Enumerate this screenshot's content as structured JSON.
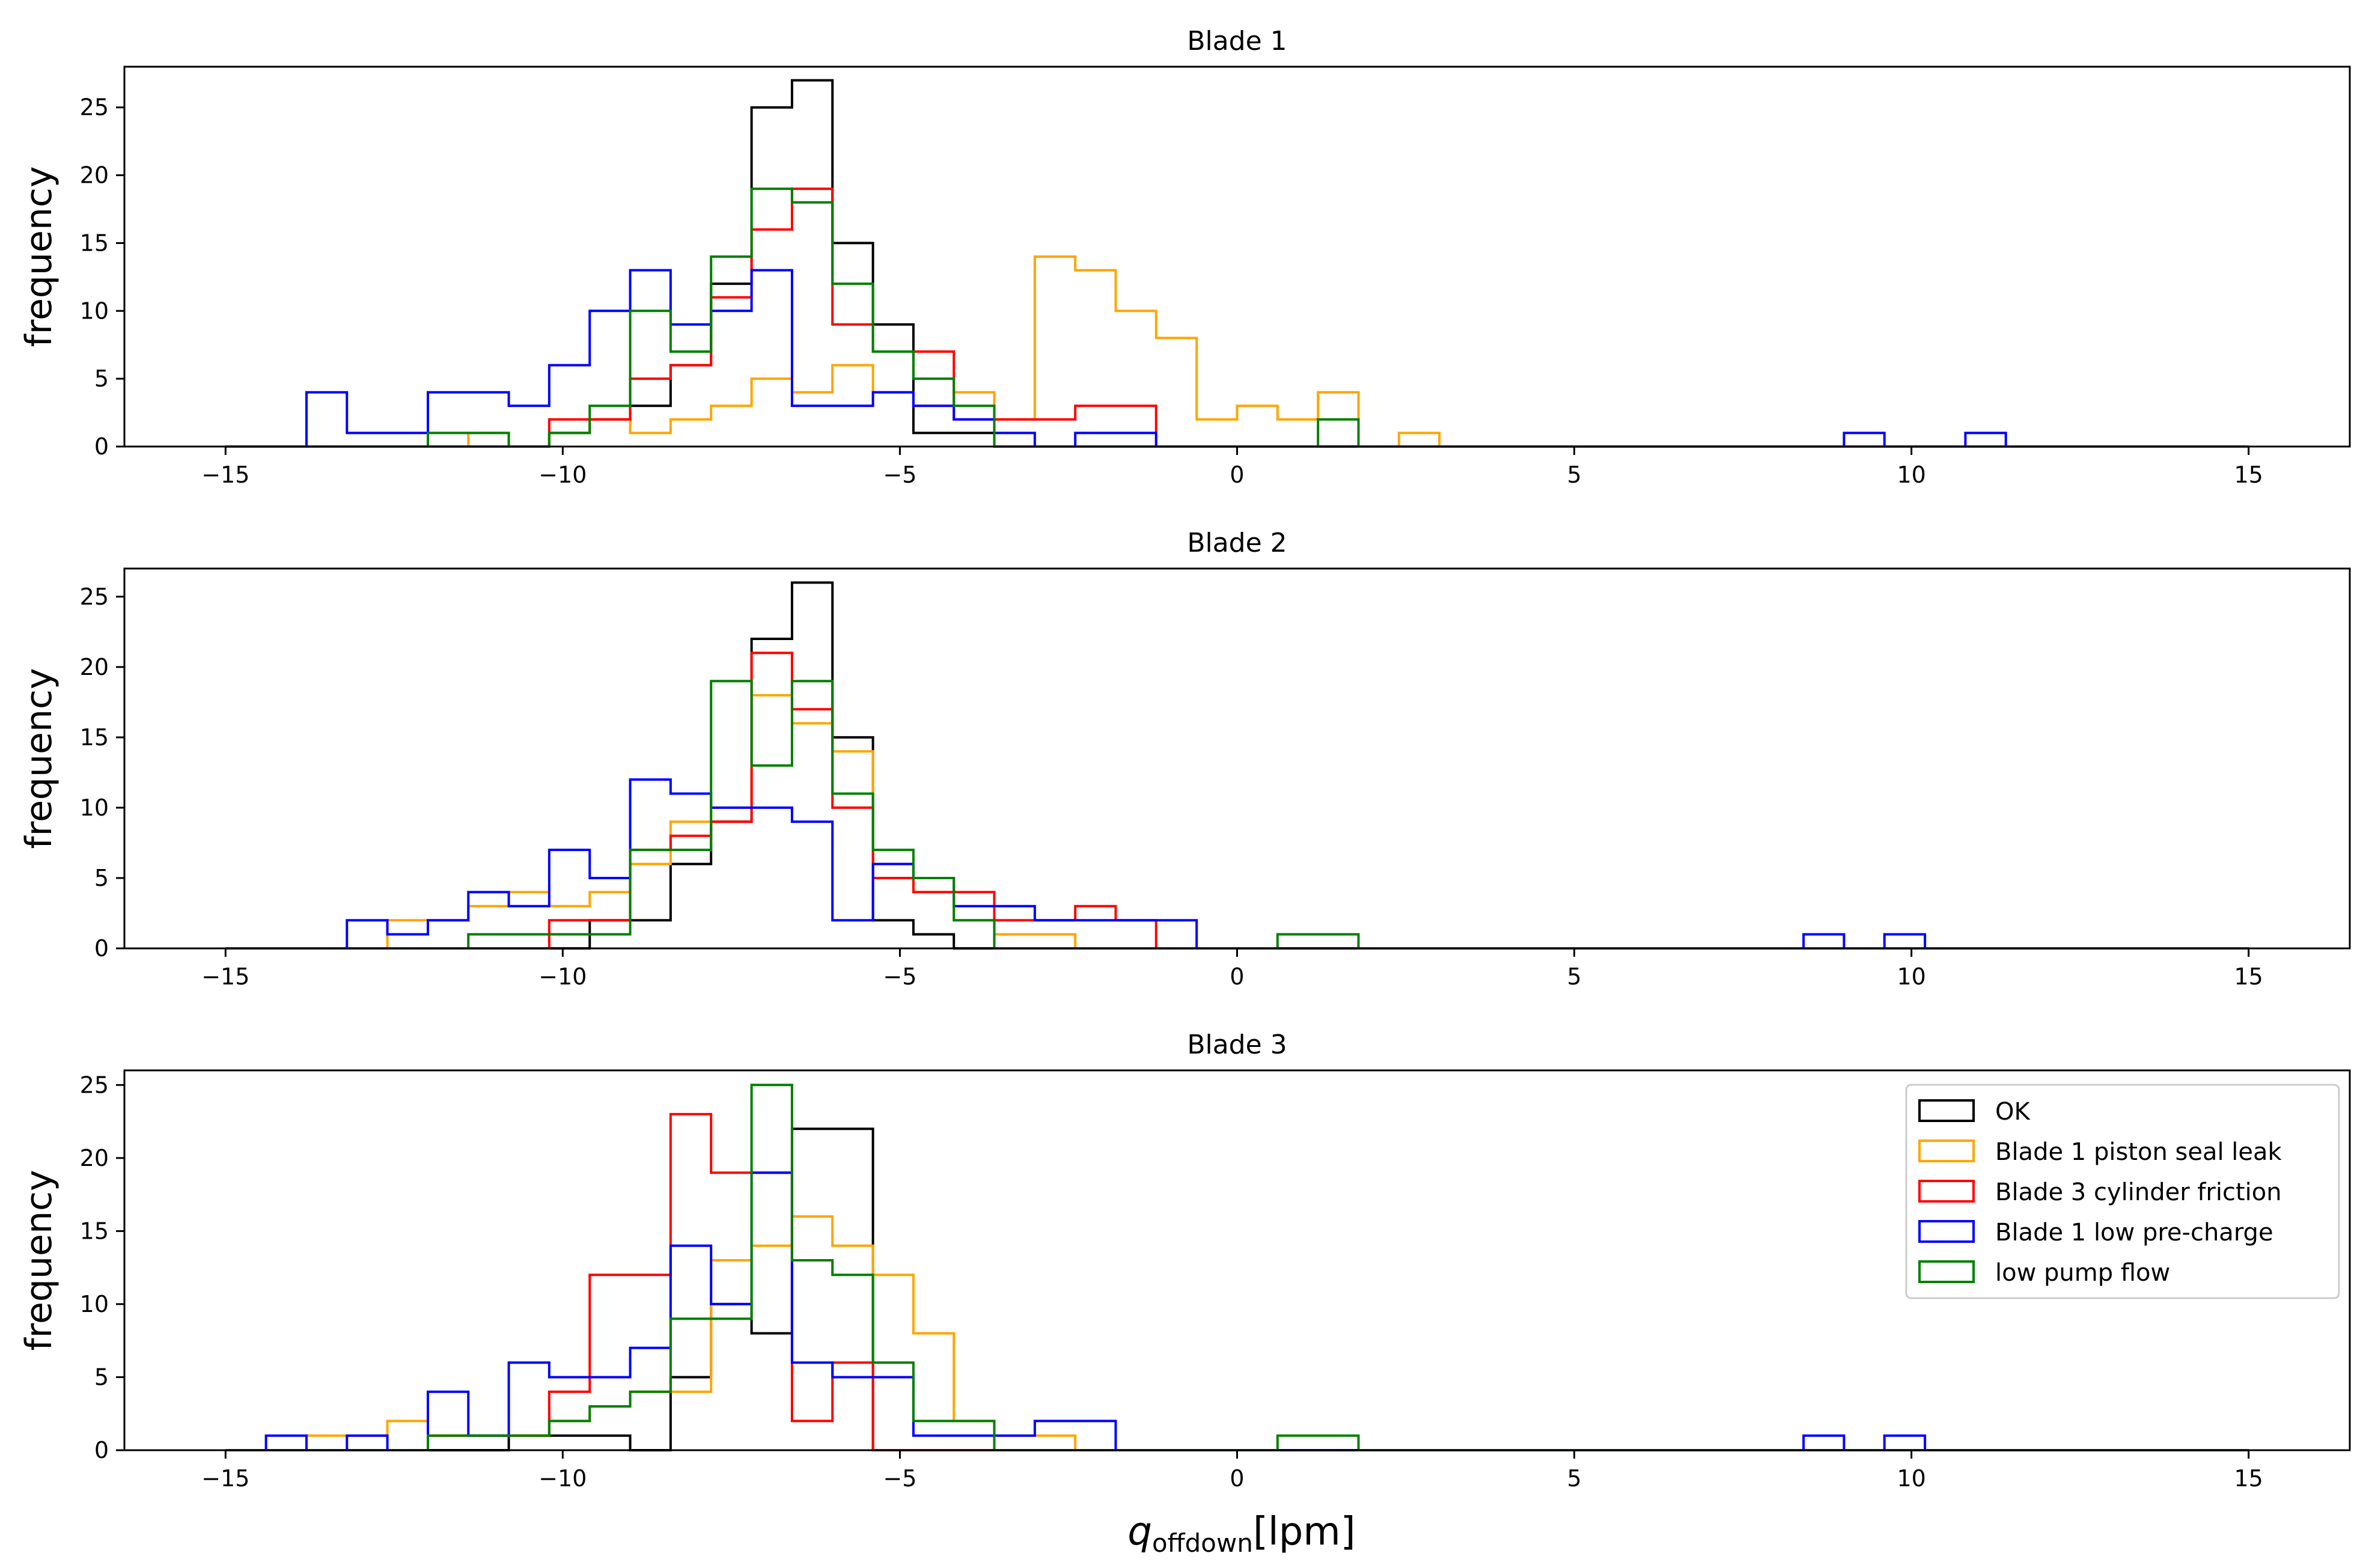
{
  "figure": {
    "xlabel_main": "q",
    "xlabel_sub": "offdown",
    "xlabel_unit": "[lpm]",
    "series_styles": [
      {
        "name": "OK",
        "color": "#000000"
      },
      {
        "name": "Blade 1 piston seal leak",
        "color": "#FFA500"
      },
      {
        "name": "Blade 3 cylinder friction",
        "color": "#FF0000"
      },
      {
        "name": "Blade 1 low pre-charge",
        "color": "#0000FF"
      },
      {
        "name": "low pump flow",
        "color": "#008000"
      }
    ]
  },
  "chart_data": [
    {
      "type": "histogram",
      "title": "Blade 1",
      "xlabel": "",
      "ylabel": "frequency",
      "xlim": [
        -16.5,
        16.5
      ],
      "ylim": [
        0,
        28
      ],
      "xticks": [
        -15,
        -10,
        -5,
        0,
        5,
        10,
        15
      ],
      "xtick_labels": [
        "−15",
        "−10",
        "−5",
        "0",
        "5",
        "10",
        "15"
      ],
      "yticks": [
        0,
        5,
        10,
        15,
        20,
        25
      ],
      "bin_start": -15,
      "bin_width": 0.6,
      "series": [
        {
          "name": "OK",
          "bins": [
            [
              -10.2,
              1
            ],
            [
              -9.6,
              2
            ],
            [
              -9.0,
              3
            ],
            [
              -8.4,
              6
            ],
            [
              -7.8,
              12
            ],
            [
              -7.2,
              25
            ],
            [
              -6.6,
              27
            ],
            [
              -6.0,
              15
            ],
            [
              -5.4,
              9
            ],
            [
              -4.8,
              1
            ],
            [
              -4.2,
              1
            ]
          ]
        },
        {
          "name": "Blade 1 piston seal leak",
          "bins": [
            [
              -11.4,
              1
            ],
            [
              -10.2,
              1
            ],
            [
              -9.6,
              2
            ],
            [
              -9.0,
              1
            ],
            [
              -8.4,
              2
            ],
            [
              -7.8,
              3
            ],
            [
              -7.2,
              5
            ],
            [
              -6.6,
              4
            ],
            [
              -6.0,
              6
            ],
            [
              -5.4,
              4
            ],
            [
              -4.8,
              3
            ],
            [
              -4.2,
              4
            ],
            [
              -3.6,
              2
            ],
            [
              -3.0,
              14
            ],
            [
              -2.4,
              13
            ],
            [
              -1.8,
              10
            ],
            [
              -1.2,
              8
            ],
            [
              -0.6,
              2
            ],
            [
              0.0,
              3
            ],
            [
              0.6,
              2
            ],
            [
              1.2,
              4
            ],
            [
              2.4,
              1
            ]
          ]
        },
        {
          "name": "Blade 3 cylinder friction",
          "bins": [
            [
              -10.2,
              2
            ],
            [
              -9.6,
              2
            ],
            [
              -9.0,
              5
            ],
            [
              -8.4,
              6
            ],
            [
              -7.8,
              11
            ],
            [
              -7.2,
              16
            ],
            [
              -6.6,
              19
            ],
            [
              -6.0,
              9
            ],
            [
              -5.4,
              7
            ],
            [
              -4.8,
              7
            ],
            [
              -4.2,
              2
            ],
            [
              -3.6,
              2
            ],
            [
              -3.0,
              2
            ],
            [
              -2.4,
              3
            ],
            [
              -1.8,
              3
            ]
          ]
        },
        {
          "name": "Blade 1 low pre-charge",
          "bins": [
            [
              -13.8,
              4
            ],
            [
              -13.2,
              1
            ],
            [
              -12.6,
              1
            ],
            [
              -12.0,
              4
            ],
            [
              -11.4,
              4
            ],
            [
              -10.8,
              3
            ],
            [
              -10.2,
              6
            ],
            [
              -9.6,
              10
            ],
            [
              -9.0,
              13
            ],
            [
              -8.4,
              9
            ],
            [
              -7.8,
              10
            ],
            [
              -7.2,
              13
            ],
            [
              -6.6,
              3
            ],
            [
              -6.0,
              3
            ],
            [
              -5.4,
              4
            ],
            [
              -4.8,
              3
            ],
            [
              -4.2,
              2
            ],
            [
              -3.6,
              1
            ],
            [
              -2.4,
              1
            ],
            [
              -1.8,
              1
            ],
            [
              9.0,
              1
            ],
            [
              10.8,
              1
            ]
          ]
        },
        {
          "name": "low pump flow",
          "bins": [
            [
              -12.0,
              1
            ],
            [
              -11.4,
              1
            ],
            [
              -10.2,
              1
            ],
            [
              -9.6,
              3
            ],
            [
              -9.0,
              10
            ],
            [
              -8.4,
              7
            ],
            [
              -7.8,
              14
            ],
            [
              -7.2,
              19
            ],
            [
              -6.6,
              18
            ],
            [
              -6.0,
              12
            ],
            [
              -5.4,
              7
            ],
            [
              -4.8,
              5
            ],
            [
              -4.2,
              3
            ],
            [
              1.2,
              2
            ]
          ]
        }
      ]
    },
    {
      "type": "histogram",
      "title": "Blade 2",
      "xlabel": "",
      "ylabel": "frequency",
      "xlim": [
        -16.5,
        16.5
      ],
      "ylim": [
        0,
        27
      ],
      "xticks": [
        -15,
        -10,
        -5,
        0,
        5,
        10,
        15
      ],
      "xtick_labels": [
        "−15",
        "−10",
        "−5",
        "0",
        "5",
        "10",
        "15"
      ],
      "yticks": [
        0,
        5,
        10,
        15,
        20,
        25
      ],
      "bin_start": -15,
      "bin_width": 0.6,
      "series": [
        {
          "name": "OK",
          "bins": [
            [
              -9.6,
              2
            ],
            [
              -9.0,
              2
            ],
            [
              -8.4,
              6
            ],
            [
              -7.8,
              9
            ],
            [
              -7.2,
              22
            ],
            [
              -6.6,
              26
            ],
            [
              -6.0,
              15
            ],
            [
              -5.4,
              2
            ],
            [
              -4.8,
              1
            ]
          ]
        },
        {
          "name": "Blade 1 piston seal leak",
          "bins": [
            [
              -12.6,
              2
            ],
            [
              -12.0,
              2
            ],
            [
              -11.4,
              3
            ],
            [
              -10.8,
              4
            ],
            [
              -10.2,
              3
            ],
            [
              -9.6,
              4
            ],
            [
              -9.0,
              6
            ],
            [
              -8.4,
              9
            ],
            [
              -7.8,
              10
            ],
            [
              -7.2,
              18
            ],
            [
              -6.6,
              16
            ],
            [
              -6.0,
              14
            ],
            [
              -5.4,
              6
            ],
            [
              -4.8,
              4
            ],
            [
              -4.2,
              2
            ],
            [
              -3.6,
              1
            ],
            [
              -3.0,
              1
            ]
          ]
        },
        {
          "name": "Blade 3 cylinder friction",
          "bins": [
            [
              -10.2,
              2
            ],
            [
              -9.6,
              2
            ],
            [
              -9.0,
              7
            ],
            [
              -8.4,
              8
            ],
            [
              -7.8,
              9
            ],
            [
              -7.2,
              21
            ],
            [
              -6.6,
              17
            ],
            [
              -6.0,
              10
            ],
            [
              -5.4,
              5
            ],
            [
              -4.8,
              4
            ],
            [
              -4.2,
              4
            ],
            [
              -3.6,
              2
            ],
            [
              -3.0,
              2
            ],
            [
              -2.4,
              3
            ],
            [
              -1.8,
              2
            ]
          ]
        },
        {
          "name": "Blade 1 low pre-charge",
          "bins": [
            [
              -13.2,
              2
            ],
            [
              -12.6,
              1
            ],
            [
              -12.0,
              2
            ],
            [
              -11.4,
              4
            ],
            [
              -10.8,
              3
            ],
            [
              -10.2,
              7
            ],
            [
              -9.6,
              5
            ],
            [
              -9.0,
              12
            ],
            [
              -8.4,
              11
            ],
            [
              -7.8,
              10
            ],
            [
              -7.2,
              10
            ],
            [
              -6.6,
              9
            ],
            [
              -6.0,
              2
            ],
            [
              -5.4,
              6
            ],
            [
              -4.8,
              5
            ],
            [
              -4.2,
              3
            ],
            [
              -3.6,
              3
            ],
            [
              -3.0,
              2
            ],
            [
              -2.4,
              2
            ],
            [
              -1.8,
              2
            ],
            [
              -1.2,
              2
            ],
            [
              8.4,
              1
            ],
            [
              9.6,
              1
            ]
          ]
        },
        {
          "name": "low pump flow",
          "bins": [
            [
              -11.4,
              1
            ],
            [
              -10.8,
              1
            ],
            [
              -10.2,
              1
            ],
            [
              -9.6,
              1
            ],
            [
              -9.0,
              7
            ],
            [
              -8.4,
              7
            ],
            [
              -7.8,
              19
            ],
            [
              -7.2,
              13
            ],
            [
              -6.6,
              19
            ],
            [
              -6.0,
              11
            ],
            [
              -5.4,
              7
            ],
            [
              -4.8,
              5
            ],
            [
              -4.2,
              2
            ],
            [
              0.6,
              1
            ],
            [
              1.2,
              1
            ]
          ]
        }
      ]
    },
    {
      "type": "histogram",
      "title": "Blade 3",
      "xlabel": "q_offdown[lpm]",
      "ylabel": "frequency",
      "xlim": [
        -16.5,
        16.5
      ],
      "ylim": [
        0,
        26
      ],
      "xticks": [
        -15,
        -10,
        -5,
        0,
        5,
        10,
        15
      ],
      "xtick_labels": [
        "−15",
        "−10",
        "−5",
        "0",
        "5",
        "10",
        "15"
      ],
      "yticks": [
        0,
        5,
        10,
        15,
        20,
        25
      ],
      "bin_start": -15,
      "bin_width": 0.6,
      "legend": {
        "placement": "top-right",
        "entries": [
          "OK",
          "Blade 1 piston seal leak",
          "Blade 3 cylinder friction",
          "Blade 1 low pre-charge",
          "low pump flow"
        ]
      },
      "series": [
        {
          "name": "OK",
          "bins": [
            [
              -10.8,
              1
            ],
            [
              -10.2,
              1
            ],
            [
              -9.6,
              1
            ],
            [
              -8.4,
              5
            ],
            [
              -7.8,
              10
            ],
            [
              -7.2,
              8
            ],
            [
              -6.6,
              22
            ],
            [
              -6.0,
              22
            ],
            [
              -5.4,
              0
            ]
          ]
        },
        {
          "name": "Blade 1 piston seal leak",
          "bins": [
            [
              -13.8,
              1
            ],
            [
              -13.2,
              1
            ],
            [
              -12.6,
              2
            ],
            [
              -12.0,
              1
            ],
            [
              -11.4,
              1
            ],
            [
              -10.8,
              1
            ],
            [
              -10.2,
              2
            ],
            [
              -9.6,
              3
            ],
            [
              -9.0,
              4
            ],
            [
              -8.4,
              4
            ],
            [
              -7.8,
              13
            ],
            [
              -7.2,
              14
            ],
            [
              -6.6,
              16
            ],
            [
              -6.0,
              14
            ],
            [
              -5.4,
              12
            ],
            [
              -4.8,
              8
            ],
            [
              -4.2,
              2
            ],
            [
              -3.6,
              1
            ],
            [
              -3.0,
              1
            ]
          ]
        },
        {
          "name": "Blade 3 cylinder friction",
          "bins": [
            [
              -12.0,
              1
            ],
            [
              -11.4,
              1
            ],
            [
              -10.8,
              1
            ],
            [
              -10.2,
              4
            ],
            [
              -9.6,
              12
            ],
            [
              -9.0,
              12
            ],
            [
              -8.4,
              23
            ],
            [
              -7.8,
              19
            ],
            [
              -7.2,
              19
            ],
            [
              -6.6,
              2
            ],
            [
              -6.0,
              6
            ],
            [
              -5.4,
              0
            ]
          ]
        },
        {
          "name": "Blade 1 low pre-charge",
          "bins": [
            [
              -14.4,
              1
            ],
            [
              -13.8,
              0
            ],
            [
              -13.2,
              1
            ],
            [
              -12.6,
              0
            ],
            [
              -12.0,
              4
            ],
            [
              -11.4,
              1
            ],
            [
              -10.8,
              6
            ],
            [
              -10.2,
              5
            ],
            [
              -9.6,
              5
            ],
            [
              -9.0,
              7
            ],
            [
              -8.4,
              14
            ],
            [
              -7.8,
              10
            ],
            [
              -7.2,
              19
            ],
            [
              -6.6,
              6
            ],
            [
              -6.0,
              5
            ],
            [
              -5.4,
              5
            ],
            [
              -4.8,
              1
            ],
            [
              -4.2,
              1
            ],
            [
              -3.6,
              1
            ],
            [
              -3.0,
              2
            ],
            [
              -2.4,
              2
            ],
            [
              8.4,
              1
            ],
            [
              9.6,
              1
            ]
          ]
        },
        {
          "name": "low pump flow",
          "bins": [
            [
              -12.0,
              1
            ],
            [
              -11.4,
              1
            ],
            [
              -10.8,
              1
            ],
            [
              -10.2,
              2
            ],
            [
              -9.6,
              3
            ],
            [
              -9.0,
              4
            ],
            [
              -8.4,
              9
            ],
            [
              -7.8,
              9
            ],
            [
              -7.2,
              25
            ],
            [
              -6.6,
              13
            ],
            [
              -6.0,
              12
            ],
            [
              -5.4,
              6
            ],
            [
              -4.8,
              2
            ],
            [
              -4.2,
              2
            ],
            [
              0.6,
              1
            ],
            [
              1.2,
              1
            ]
          ]
        }
      ]
    }
  ]
}
